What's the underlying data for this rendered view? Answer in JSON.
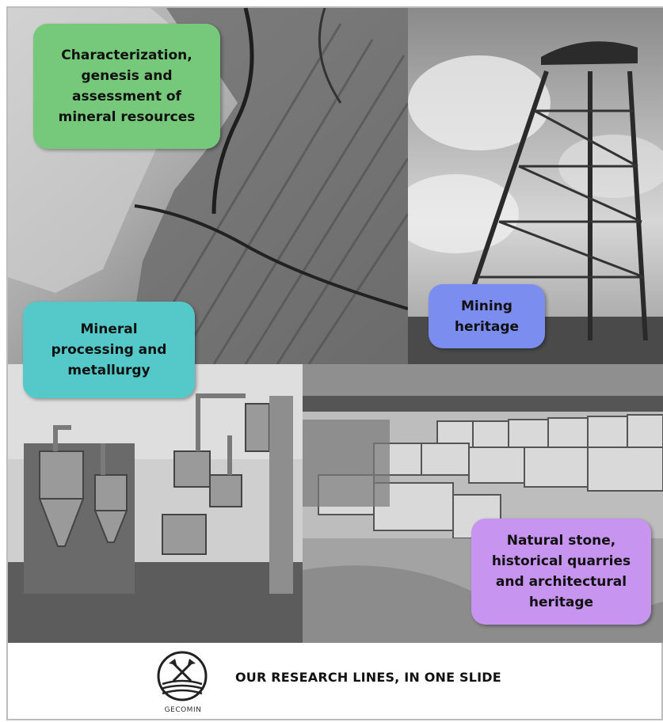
{
  "tiles": {
    "mineral_resources": {
      "label": "Characterization,\ngenesis and\nassessment of\nmineral resources",
      "color": "#76c97a"
    },
    "mining_heritage": {
      "label": "Mining\nheritage",
      "color": "#7c8df0"
    },
    "mineral_processing": {
      "label": "Mineral\nprocessing and\nmetallurgy",
      "color": "#55c9c9"
    },
    "natural_stone": {
      "label": "Natural stone,\nhistorical quarries\nand architectural\nheritage",
      "color": "#c794ef"
    }
  },
  "footer": {
    "logo_text": "GECOMIN",
    "slogan": "OUR RESEARCH  LINES, IN ONE SLIDE"
  }
}
